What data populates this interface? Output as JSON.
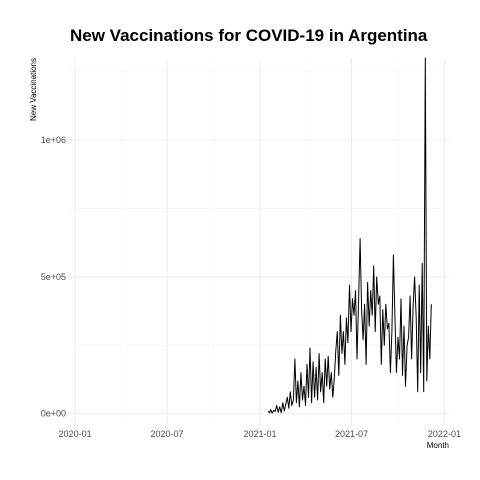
{
  "chart_data": {
    "type": "line",
    "title": "New Vaccinations for COVID-19 in Argentina",
    "xlabel": "Month",
    "ylabel": "New Vaccinations",
    "x_is_date": true,
    "xlim": [
      "2019-12-20",
      "2022-01-10"
    ],
    "ylim": [
      -45000,
      1300000
    ],
    "x_ticks": [
      "2020-01-01",
      "2020-07-01",
      "2021-01-01",
      "2021-07-01",
      "2022-01-01"
    ],
    "x_tick_labels": [
      "2020-01",
      "2020-07",
      "2021-01",
      "2021-07",
      "2022-01"
    ],
    "y_ticks": [
      0,
      500000,
      1000000
    ],
    "y_tick_labels": [
      "0e+00",
      "5e+05",
      "1e+06"
    ],
    "grid": true,
    "legend": "none",
    "series": [
      {
        "x": [
          "2021-01-17",
          "2021-01-20",
          "2021-01-22",
          "2021-01-25",
          "2021-01-28",
          "2021-01-31",
          "2021-02-03",
          "2021-02-06",
          "2021-02-09",
          "2021-02-12",
          "2021-02-15",
          "2021-02-18",
          "2021-02-21",
          "2021-02-24",
          "2021-02-27",
          "2021-03-02",
          "2021-03-05",
          "2021-03-08",
          "2021-03-11",
          "2021-03-14",
          "2021-03-17",
          "2021-03-20",
          "2021-03-23",
          "2021-03-26",
          "2021-03-29",
          "2021-04-01",
          "2021-04-04",
          "2021-04-07",
          "2021-04-10",
          "2021-04-13",
          "2021-04-16",
          "2021-04-19",
          "2021-04-22",
          "2021-04-25",
          "2021-04-28",
          "2021-05-01",
          "2021-05-04",
          "2021-05-07",
          "2021-05-10",
          "2021-05-13",
          "2021-05-16",
          "2021-05-19",
          "2021-05-22",
          "2021-05-25",
          "2021-05-28",
          "2021-05-31",
          "2021-06-03",
          "2021-06-06",
          "2021-06-09",
          "2021-06-12",
          "2021-06-15",
          "2021-06-18",
          "2021-06-21",
          "2021-06-24",
          "2021-06-27",
          "2021-06-30",
          "2021-07-03",
          "2021-07-06",
          "2021-07-09",
          "2021-07-12",
          "2021-07-15",
          "2021-07-18",
          "2021-07-21",
          "2021-07-24",
          "2021-07-27",
          "2021-07-30",
          "2021-08-02",
          "2021-08-05",
          "2021-08-08",
          "2021-08-11",
          "2021-08-14",
          "2021-08-17",
          "2021-08-20",
          "2021-08-23",
          "2021-08-26",
          "2021-08-29",
          "2021-09-01",
          "2021-09-04",
          "2021-09-07",
          "2021-09-10",
          "2021-09-13",
          "2021-09-16",
          "2021-09-19",
          "2021-09-22",
          "2021-09-25",
          "2021-09-28",
          "2021-10-01",
          "2021-10-04",
          "2021-10-07",
          "2021-10-10",
          "2021-10-13",
          "2021-10-16",
          "2021-10-19",
          "2021-10-22",
          "2021-10-25",
          "2021-10-28",
          "2021-10-31",
          "2021-11-03",
          "2021-11-06",
          "2021-11-09",
          "2021-11-12",
          "2021-11-15",
          "2021-11-18",
          "2021-11-21",
          "2021-11-24",
          "2021-11-27",
          "2021-11-30",
          "2021-12-03",
          "2021-12-06"
        ],
        "y": [
          10000,
          3000,
          15000,
          2000,
          12000,
          8000,
          30000,
          5000,
          25000,
          3000,
          40000,
          10000,
          35000,
          60000,
          20000,
          80000,
          30000,
          50000,
          200000,
          40000,
          120000,
          25000,
          150000,
          50000,
          100000,
          30000,
          180000,
          60000,
          240000,
          40000,
          190000,
          60000,
          170000,
          50000,
          220000,
          80000,
          150000,
          40000,
          200000,
          100000,
          210000,
          90000,
          150000,
          60000,
          130000,
          230000,
          300000,
          140000,
          360000,
          220000,
          300000,
          180000,
          350000,
          260000,
          470000,
          300000,
          420000,
          360000,
          450000,
          200000,
          400000,
          640000,
          380000,
          270000,
          400000,
          180000,
          480000,
          320000,
          450000,
          360000,
          540000,
          300000,
          500000,
          400000,
          430000,
          180000,
          380000,
          250000,
          400000,
          310000,
          330000,
          150000,
          300000,
          580000,
          360000,
          150000,
          280000,
          200000,
          420000,
          140000,
          320000,
          100000,
          250000,
          280000,
          430000,
          200000,
          390000,
          500000,
          350000,
          80000,
          470000,
          150000,
          550000,
          80000,
          1300000,
          120000,
          320000,
          200000,
          400000
        ]
      }
    ]
  }
}
